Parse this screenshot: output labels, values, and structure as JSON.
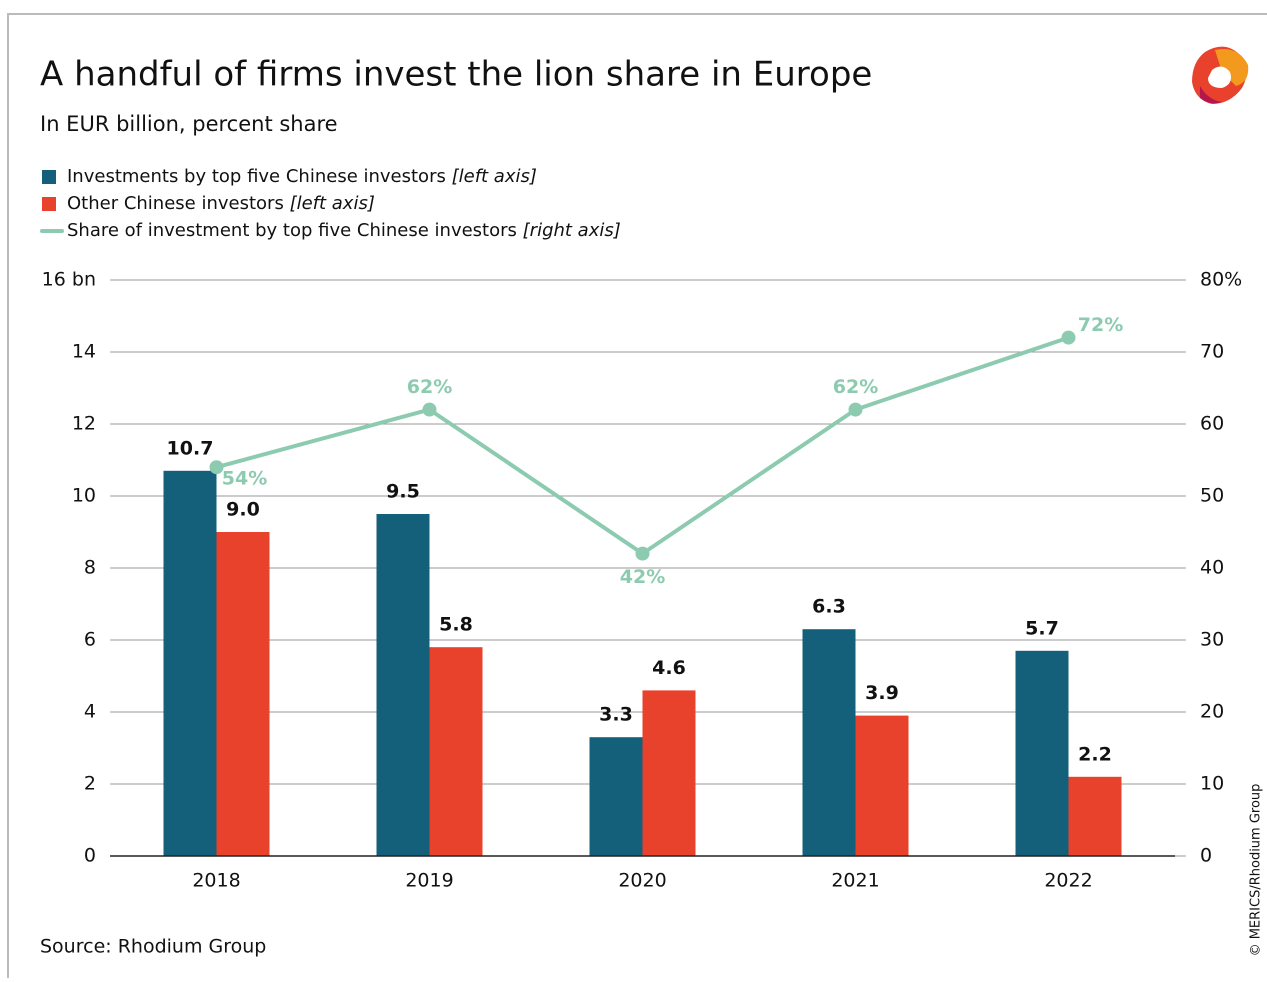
{
  "chart_data": {
    "type": "bar_line",
    "title": "A handful of firms invest the lion share in Europe",
    "subtitle": "In EUR billion, percent share",
    "source": "Source: Rhodium Group",
    "credit": "© MERICS/Rhodium Group",
    "categories": [
      "2018",
      "2019",
      "2020",
      "2021",
      "2022"
    ],
    "series": [
      {
        "name": "Investments by top five Chinese investors",
        "legend_note": "[left axis]",
        "color": "#14607a",
        "values": [
          10.7,
          9.5,
          3.3,
          6.3,
          5.7
        ]
      },
      {
        "name": "Other Chinese investors",
        "legend_note": "[left axis]",
        "color": "#e8412c",
        "values": [
          9.0,
          5.8,
          4.6,
          3.9,
          2.2
        ],
        "value_labels": [
          "9.0",
          "5.8",
          "4.6",
          "3.9",
          "2.2"
        ]
      },
      {
        "name": "Share of investment by top five Chinese investors",
        "legend_note": "[right axis]",
        "color": "#8ccbb0",
        "axis": "y2",
        "values": [
          54,
          62,
          42,
          62,
          72
        ],
        "value_labels": [
          "54%",
          "62%",
          "42%",
          "62%",
          "72%"
        ]
      }
    ],
    "ylim": [
      0,
      16
    ],
    "yticks": [
      0,
      2,
      4,
      6,
      8,
      10,
      12,
      14,
      {
        "value": 16,
        "label": "16 bn"
      }
    ],
    "y2lim": [
      0,
      80
    ],
    "y2ticks": [
      0,
      10,
      20,
      30,
      40,
      50,
      60,
      70,
      {
        "value": 80,
        "label": "80%"
      }
    ],
    "grid": true
  }
}
